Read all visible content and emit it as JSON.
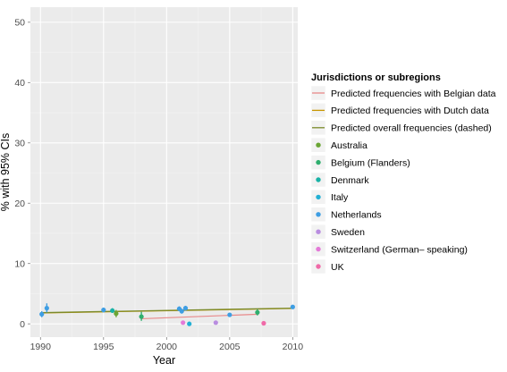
{
  "chart_data": {
    "type": "scatter",
    "xlabel": "Year",
    "ylabel": "% with 95% CIs",
    "xlim": [
      1989.2,
      2010.4
    ],
    "ylim": [
      -2.2,
      52.5
    ],
    "xticks": [
      1990,
      1995,
      2000,
      2005,
      2010
    ],
    "xtick_labels": [
      "1990",
      "1995",
      "2000",
      "2005",
      "2010"
    ],
    "yticks": [
      0,
      10,
      20,
      30,
      40,
      50
    ],
    "ytick_labels": [
      "0",
      "10",
      "20",
      "30",
      "40",
      "50"
    ],
    "grid": true,
    "background": "#ebebeb",
    "legend": {
      "title": "Jurisdictions or subregions",
      "placement": "right",
      "lines": [
        {
          "label": "Predicted frequencies with Belgian data",
          "color": "#e8898a"
        },
        {
          "label": "Predicted frequencies with Dutch data",
          "color": "#c89600"
        },
        {
          "label": "Predicted overall frequencies (dashed)",
          "color": "#7a8a2a"
        }
      ],
      "points": [
        {
          "label": "Australia",
          "color": "#6aa534"
        },
        {
          "label": "Belgium (Flanders)",
          "color": "#2fae6e"
        },
        {
          "label": "Denmark",
          "color": "#19b2a6"
        },
        {
          "label": "Italy",
          "color": "#22b0d4"
        },
        {
          "label": "Netherlands",
          "color": "#3f9ee3"
        },
        {
          "label": "Sweden",
          "color": "#b98de0"
        },
        {
          "label": "Switzerland (German– speaking)",
          "color": "#e47ad8"
        },
        {
          "label": "UK",
          "color": "#f06aa8"
        }
      ]
    },
    "lines": [
      {
        "name": "Predicted frequencies with Belgian data",
        "color": "#e8898a",
        "x": [
          1998,
          2007.3
        ],
        "y": [
          0.85,
          1.6
        ]
      },
      {
        "name": "Predicted frequencies with Dutch data",
        "color": "#c89600",
        "x": [
          1990,
          2010
        ],
        "y": [
          1.8,
          2.55
        ]
      },
      {
        "name": "Predicted overall frequencies (dashed)",
        "color": "#7a8a2a",
        "x": [
          1990,
          2010
        ],
        "y": [
          1.85,
          2.6
        ]
      }
    ],
    "points": [
      {
        "group": "Netherlands",
        "color": "#3f9ee3",
        "x": 1990.1,
        "y": 1.6,
        "lo": 1.1,
        "hi": 2.1
      },
      {
        "group": "Netherlands",
        "color": "#3f9ee3",
        "x": 1990.5,
        "y": 2.6,
        "lo": 1.9,
        "hi": 3.4
      },
      {
        "group": "Netherlands",
        "color": "#3f9ee3",
        "x": 1995.0,
        "y": 2.3,
        "lo": 1.9,
        "hi": 2.7
      },
      {
        "group": "Denmark",
        "color": "#19b2a6",
        "x": 1995.7,
        "y": 2.2,
        "lo": 1.8,
        "hi": 2.6
      },
      {
        "group": "Australia",
        "color": "#6aa534",
        "x": 1996.0,
        "y": 1.7,
        "lo": 1.1,
        "hi": 2.3
      },
      {
        "group": "Belgium (Flanders)",
        "color": "#2fae6e",
        "x": 1998.0,
        "y": 1.2,
        "lo": 0.5,
        "hi": 2.0
      },
      {
        "group": "Netherlands",
        "color": "#3f9ee3",
        "x": 2001.0,
        "y": 2.5,
        "lo": 2.1,
        "hi": 2.9
      },
      {
        "group": "Netherlands",
        "color": "#3f9ee3",
        "x": 2001.2,
        "y": 2.1,
        "lo": 1.7,
        "hi": 2.5
      },
      {
        "group": "Netherlands",
        "color": "#3f9ee3",
        "x": 2001.5,
        "y": 2.6,
        "lo": 2.2,
        "hi": 3.0
      },
      {
        "group": "Switzerland (German– speaking)",
        "color": "#e47ad8",
        "x": 2001.3,
        "y": 0.2,
        "lo": 0.0,
        "hi": 0.5
      },
      {
        "group": "Italy",
        "color": "#22b0d4",
        "x": 2001.8,
        "y": 0.0,
        "lo": -0.1,
        "hi": 0.2
      },
      {
        "group": "Sweden",
        "color": "#b98de0",
        "x": 2003.9,
        "y": 0.2,
        "lo": 0.0,
        "hi": 0.4
      },
      {
        "group": "Netherlands",
        "color": "#3f9ee3",
        "x": 2005.0,
        "y": 1.5,
        "lo": 1.2,
        "hi": 1.8
      },
      {
        "group": "Belgium (Flanders)",
        "color": "#2fae6e",
        "x": 2007.2,
        "y": 1.9,
        "lo": 1.4,
        "hi": 2.4
      },
      {
        "group": "UK",
        "color": "#f06aa8",
        "x": 2007.7,
        "y": 0.1,
        "lo": -0.1,
        "hi": 0.3
      },
      {
        "group": "Netherlands",
        "color": "#3f9ee3",
        "x": 2010.0,
        "y": 2.8,
        "lo": 2.5,
        "hi": 3.1
      }
    ]
  }
}
